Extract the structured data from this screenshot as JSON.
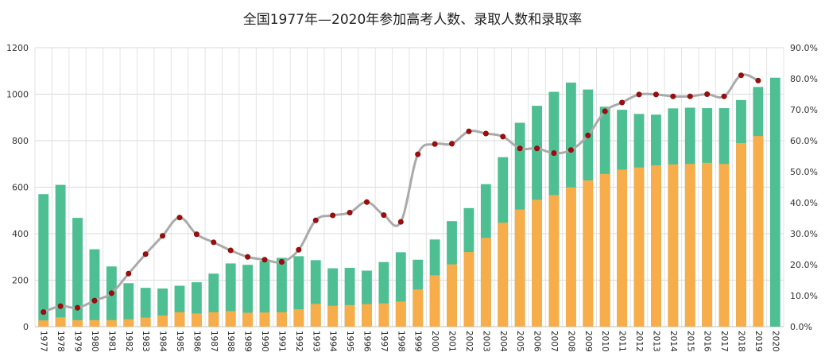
{
  "chart_data": {
    "type": "bar",
    "title": "全国1977年—2020年参加高考人数、录取人数和录取率",
    "categories": [
      "1977",
      "1978",
      "1979",
      "1980",
      "1981",
      "1982",
      "1983",
      "1984",
      "1985",
      "1986",
      "1987",
      "1988",
      "1989",
      "1990",
      "1991",
      "1992",
      "1993",
      "1994",
      "1995",
      "1996",
      "1997",
      "1998",
      "1999",
      "2000",
      "2001",
      "2002",
      "2003",
      "2004",
      "2005",
      "2006",
      "2007",
      "2008",
      "2009",
      "2010",
      "2011",
      "2012",
      "2013",
      "2014",
      "2015",
      "2016",
      "2017",
      "2018",
      "2019",
      "2020"
    ],
    "series": [
      {
        "values": [
          570,
          610,
          468,
          333,
          259,
          187,
          167,
          164,
          176,
          191,
          228,
          272,
          266,
          283,
          296,
          303,
          286,
          251,
          253,
          241,
          278,
          320,
          288,
          375,
          454,
          510,
          613,
          729,
          877,
          950,
          1010,
          1050,
          1020,
          946,
          933,
          915,
          912,
          939,
          942,
          940,
          940,
          975,
          1031,
          1071
        ]
      },
      {
        "values": [
          27,
          40,
          28,
          28,
          28,
          32,
          39,
          48,
          62,
          57,
          62,
          67,
          60,
          61,
          62,
          75,
          98,
          90,
          93,
          97,
          100,
          108,
          160,
          221,
          268,
          321,
          382,
          447,
          504,
          546,
          566,
          599,
          629,
          657,
          675,
          685,
          694,
          698,
          700,
          705,
          700,
          790,
          820,
          null
        ]
      },
      {
        "values": [
          4.7,
          6.6,
          6.1,
          8.4,
          10.8,
          17.1,
          23.4,
          29.3,
          35.2,
          29.8,
          27.2,
          24.6,
          22.5,
          21.6,
          20.9,
          24.8,
          34.3,
          35.9,
          36.8,
          40.2,
          36.0,
          33.8,
          55.6,
          58.9,
          59.0,
          63.0,
          62.3,
          61.3,
          57.5,
          57.5,
          56.0,
          57.0,
          61.7,
          69.5,
          72.3,
          74.9,
          74.9,
          74.3,
          74.3,
          75.0,
          74.3,
          81.1,
          79.4,
          null
        ]
      }
    ],
    "ylim": [
      0,
      1200
    ],
    "yticks": [
      "0",
      "200",
      "400",
      "600",
      "800",
      "1000",
      "1200"
    ],
    "y2lim": [
      0,
      90
    ],
    "y2ticks": [
      "0.0%",
      "10.0%",
      "20.0%",
      "30.0%",
      "40.0%",
      "50.0%",
      "60.0%",
      "70.0%",
      "80.0%",
      "90.0%"
    ],
    "grid": true,
    "legend": "none",
    "colors": {
      "exam_bar": "#4dbf92",
      "admit_bar": "#f7ad4a",
      "rate_line": "#aaaaaa",
      "rate_marker": "#a00c0c"
    }
  }
}
